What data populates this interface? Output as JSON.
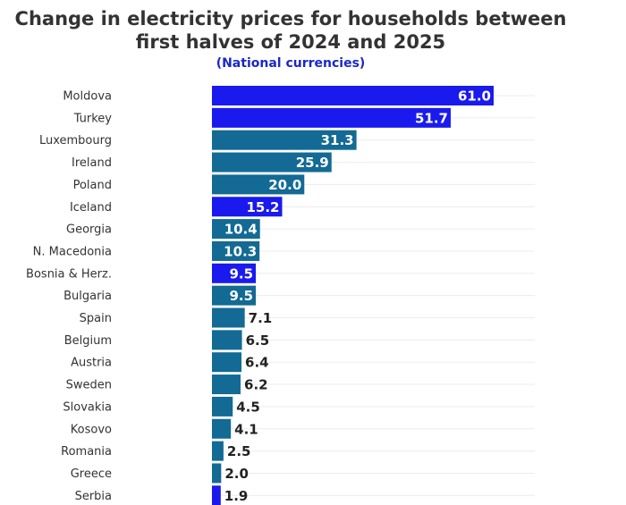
{
  "chart_data": {
    "type": "bar",
    "orientation": "horizontal",
    "title_line1": "Change in electricity prices for households between",
    "title_line2": "first halves of 2024 and 2025",
    "subtitle": "(National currencies)",
    "categories": [
      "Moldova",
      "Turkey",
      "Luxembourg",
      "Ireland",
      "Poland",
      "Iceland",
      "Georgia",
      "N. Macedonia",
      "Bosnia & Herz.",
      "Bulgaria",
      "Spain",
      "Belgium",
      "Austria",
      "Sweden",
      "Slovakia",
      "Kosovo",
      "Romania",
      "Greece",
      "Serbia"
    ],
    "values": [
      61.0,
      51.7,
      31.3,
      25.9,
      20.0,
      15.2,
      10.4,
      10.3,
      9.5,
      9.5,
      7.1,
      6.5,
      6.4,
      6.2,
      4.5,
      4.1,
      2.5,
      2.0,
      1.9
    ],
    "value_labels": [
      "61.0",
      "51.7",
      "31.3",
      "25.9",
      "20.0",
      "15.2",
      "10.4",
      "10.3",
      "9.5",
      "9.5",
      "7.1",
      "6.5",
      "6.4",
      "6.2",
      "4.5",
      "4.1",
      "2.5",
      "2.0",
      "1.9"
    ],
    "bar_colors": [
      "#1a1aee",
      "#1a1aee",
      "#136a94",
      "#136a94",
      "#136a94",
      "#1a1aee",
      "#136a94",
      "#136a94",
      "#1a1aee",
      "#136a94",
      "#136a94",
      "#136a94",
      "#136a94",
      "#136a94",
      "#136a94",
      "#136a94",
      "#136a94",
      "#136a94",
      "#1a1aee"
    ],
    "xlim": [
      0,
      70
    ],
    "grid": true
  }
}
